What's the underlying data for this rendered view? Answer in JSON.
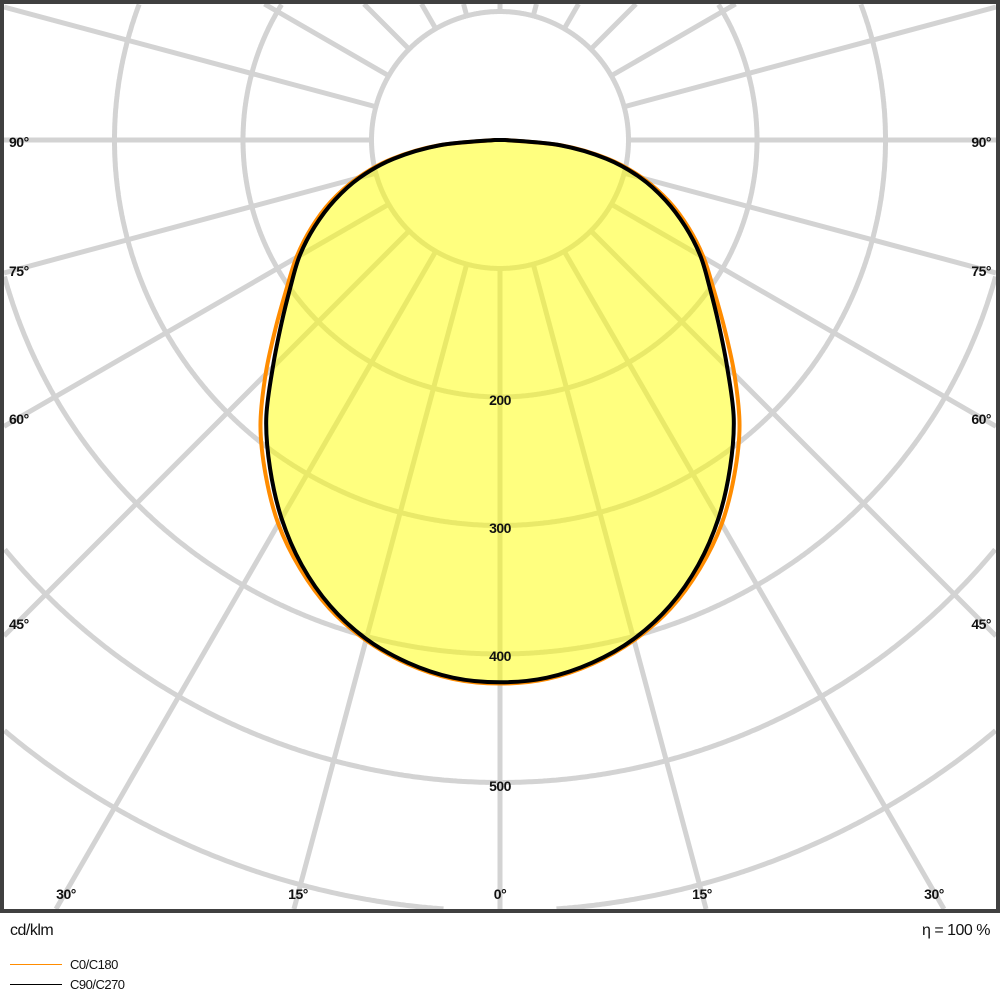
{
  "chart_data": {
    "type": "polar",
    "unit_label": "cd/klm",
    "efficiency_label": "η = 100 %",
    "radial_ticks": [
      100,
      200,
      300,
      400,
      500,
      600
    ],
    "radial_tick_labels": [
      "200",
      "300",
      "400",
      "500"
    ],
    "angle_labels_left": [
      "90°",
      "75°",
      "60°",
      "45°"
    ],
    "angle_labels_bottom": [
      "30°",
      "15°",
      "0°",
      "15°",
      "30°"
    ],
    "angle_labels_right": [
      "90°",
      "75°",
      "60°",
      "45°"
    ],
    "angles_deg": [
      0,
      5,
      10,
      15,
      20,
      25,
      30,
      35,
      40,
      45,
      50,
      55,
      60,
      65,
      70,
      75,
      80,
      85,
      90
    ],
    "series": [
      {
        "name": "C0/C180",
        "color": "#ff8c00",
        "values": [
          423,
          421,
          414,
          403,
          388,
          368,
          345,
          318,
          290,
          258,
          228,
          203,
          183,
          162,
          140,
          115,
          86,
          48,
          4
        ]
      },
      {
        "name": "C90/C270",
        "color": "#000000",
        "values": [
          422,
          420,
          413,
          402,
          386,
          365,
          340,
          312,
          283,
          250,
          222,
          199,
          180,
          159,
          137,
          113,
          84,
          47,
          4
        ]
      }
    ],
    "fill_color": "#ffff80",
    "grid": true,
    "legend_position": "bottom-left"
  }
}
